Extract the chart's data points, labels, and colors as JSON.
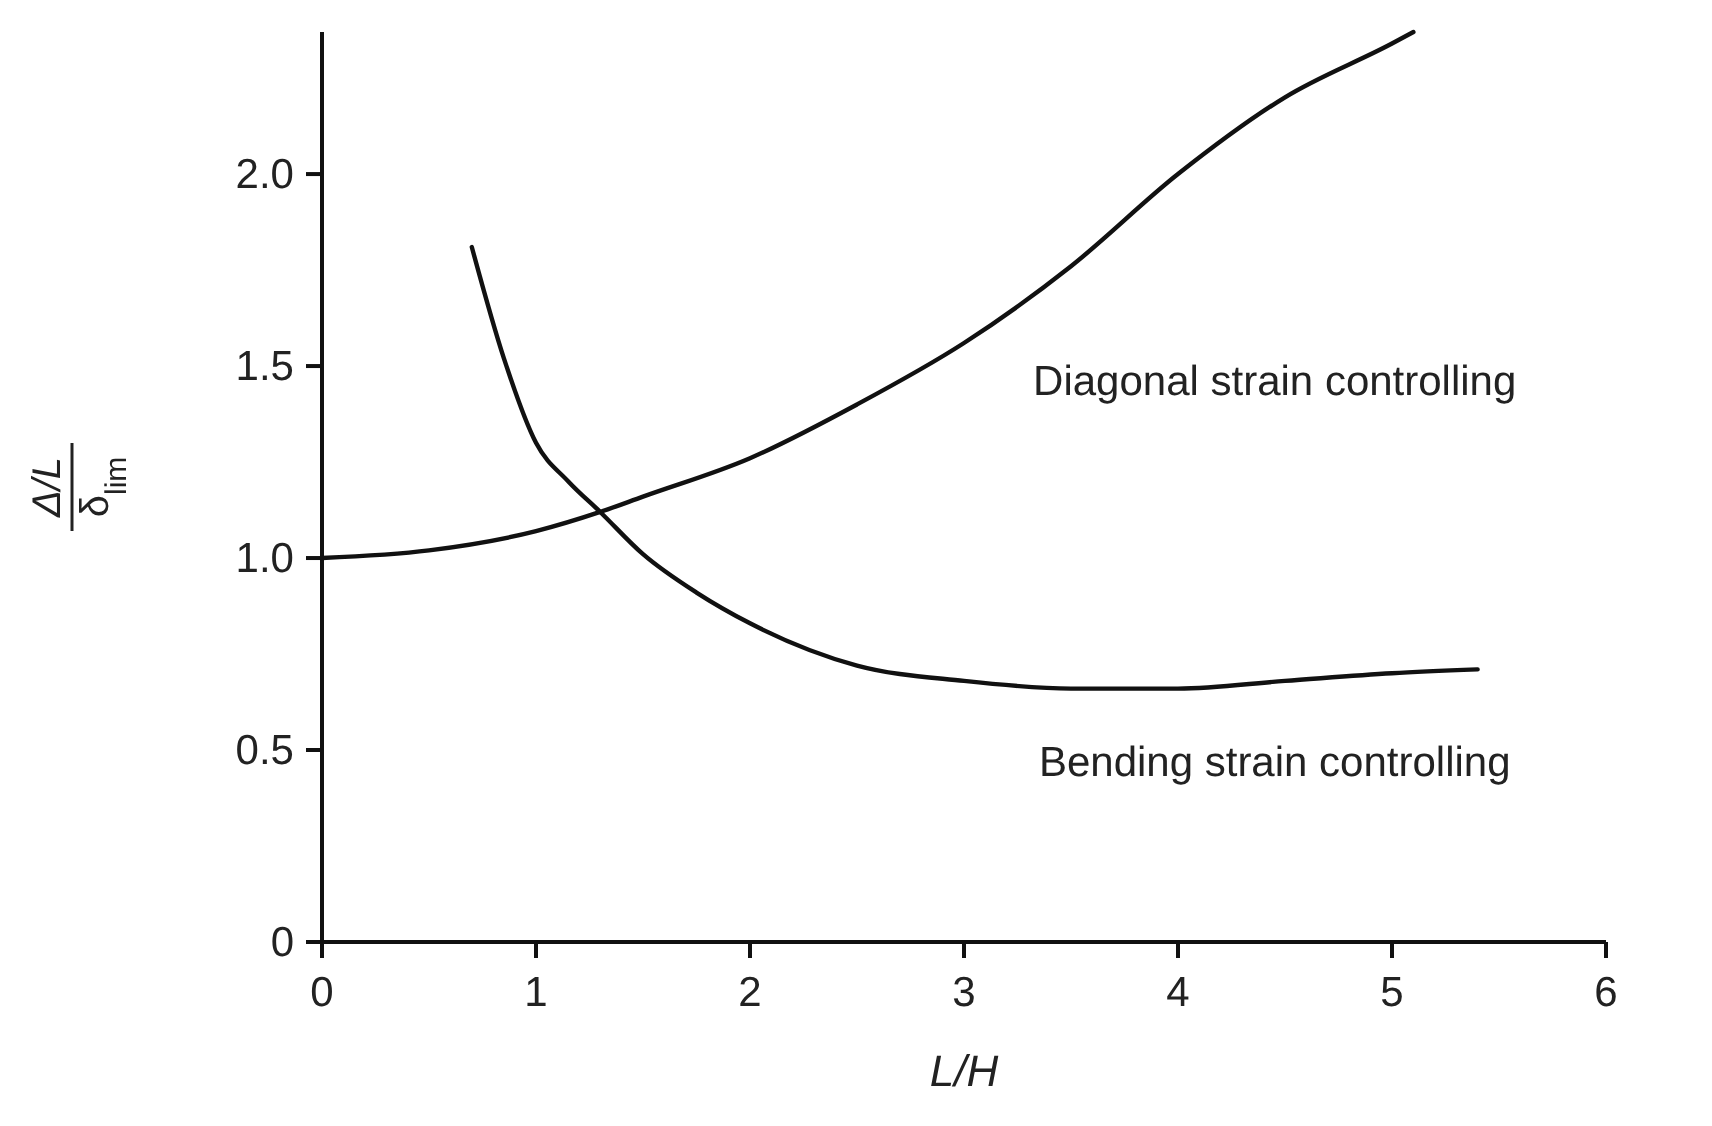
{
  "chart_data": {
    "type": "line",
    "xlabel": "L/H",
    "ylabel": "Δ/L\nδ$_{lim}$",
    "xlim": [
      0,
      6
    ],
    "xticks": [
      0,
      1,
      2,
      3,
      4,
      5,
      6
    ],
    "ylim": [
      0,
      2.37
    ],
    "yticks": [
      0,
      {
        "value": 0.5,
        "label": "0.5"
      },
      {
        "value": 1,
        "label": "1.0"
      },
      {
        "value": 1.5,
        "label": "1.5"
      },
      {
        "value": 2,
        "label": "2.0"
      }
    ],
    "grid": false,
    "line_style": "solid",
    "series": [
      {
        "color": "#111111",
        "x": [
          0,
          0.5,
          1,
          1.3,
          1.5,
          2,
          2.5,
          3,
          3.5,
          4,
          4.5,
          5,
          5.1
        ],
        "values": [
          1.0,
          1.02,
          1.07,
          1.12,
          1.16,
          1.26,
          1.4,
          1.56,
          1.76,
          2.0,
          2.2,
          2.34,
          2.37
        ]
      },
      {
        "color": "#111111",
        "x": [
          0.7,
          0.85,
          1,
          1.15,
          1.3,
          1.5,
          1.75,
          2,
          2.5,
          3,
          3.5,
          4,
          4.5,
          5,
          5.4
        ],
        "values": [
          1.81,
          1.52,
          1.3,
          1.2,
          1.12,
          1.01,
          0.91,
          0.83,
          0.72,
          0.68,
          0.66,
          0.66,
          0.68,
          0.7,
          0.71
        ]
      }
    ],
    "annotations": [
      "Diagonal strain controlling",
      "Bending strain controlling"
    ]
  }
}
